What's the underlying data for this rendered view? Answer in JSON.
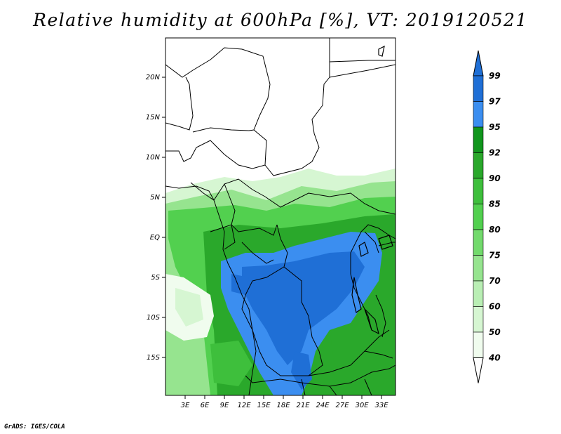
{
  "title": "Relative humidity at 600hPa [%], VT: 2019120521",
  "credit": "GrADS: IGES/COLA",
  "map": {
    "lat_labels": [
      "20N",
      "15N",
      "10N",
      "5N",
      "EQ",
      "5S",
      "10S",
      "15S"
    ],
    "lon_labels": [
      "3E",
      "6E",
      "9E",
      "12E",
      "15E",
      "18E",
      "21E",
      "24E",
      "27E",
      "30E",
      "33E"
    ]
  },
  "colorbar": {
    "labels": [
      "99",
      "97",
      "95",
      "92",
      "90",
      "85",
      "80",
      "75",
      "70",
      "60",
      "50",
      "40"
    ],
    "colors": [
      "#1f6fd6",
      "#3b8ef0",
      "#11961d",
      "#2aa82b",
      "#3ebf3c",
      "#52d04f",
      "#72da6c",
      "#96e48f",
      "#b9eeb4",
      "#d6f6d2",
      "#f0fcee"
    ],
    "top_color": "#1f6fd6"
  }
}
